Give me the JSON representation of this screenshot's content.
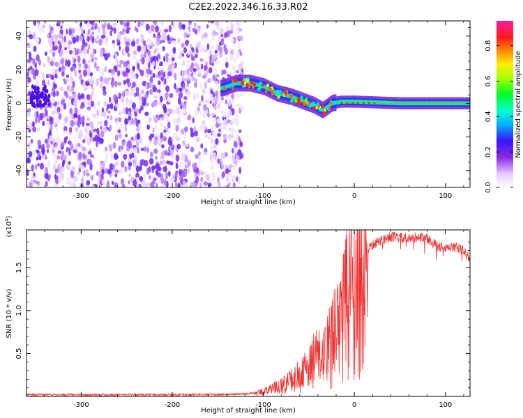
{
  "figure": {
    "title": "C2E2.2022.346.16.33.R02"
  },
  "chart_data": [
    {
      "type": "heatmap",
      "xlabel": "Height of straight line (km)",
      "ylabel": "Frequency (Hz)",
      "xlim": [
        -360,
        127
      ],
      "ylim": [
        -50,
        49
      ],
      "xticks": [
        -300,
        -200,
        -100,
        0,
        100
      ],
      "yticks": [
        -40,
        -20,
        0,
        20,
        40
      ],
      "grid": false,
      "description_of_data": "Noise-like scattered low/medium amplitude blobs across all frequencies for height < -125 km; a coherent ridge from about -145 km (freq ~12 Hz) descending to ~0 Hz near -40 km with a dip to about -4 Hz near -35 km, then a steady narrow band at ~0 Hz from -20 km to 127 km",
      "ridge": {
        "x": [
          -145,
          -130,
          -115,
          -100,
          -85,
          -70,
          -55,
          -45,
          -35,
          -25,
          -15,
          0,
          50,
          100,
          127
        ],
        "y": [
          9,
          12,
          12,
          10,
          6,
          4,
          1,
          -1,
          -4,
          0,
          1,
          1,
          0,
          0,
          0
        ]
      },
      "colorbar": {
        "label": "Normalized spectral amplitude",
        "ticks": [
          0.0,
          0.2,
          0.4,
          0.6,
          0.8
        ],
        "range": [
          0,
          0.94
        ],
        "colormap": "white-purple-blue-cyan-green-yellow-red-magenta"
      }
    },
    {
      "type": "line",
      "xlabel": "Height of straight line (km)",
      "ylabel": "SNR (10 * v/v)",
      "y_multiplier_label": "(x10",
      "y_multiplier_exp": "4",
      "y_multiplier_close": ")",
      "xlim": [
        -360,
        127
      ],
      "ylim": [
        0,
        1.94
      ],
      "xticks": [
        -300,
        -200,
        -100,
        0,
        100
      ],
      "yticks": [
        0.5,
        1.0,
        1.5
      ],
      "color": "#ee3333",
      "series": [
        {
          "x": [
            -360,
            -300,
            -200,
            -150,
            -120,
            -100,
            -90,
            -80,
            -70,
            -60,
            -50,
            -45,
            -40,
            -35,
            -30,
            -25,
            -20,
            -15,
            -10,
            -5,
            0,
            5,
            10,
            15,
            20,
            30,
            40,
            50,
            60,
            70,
            80,
            90,
            100,
            110,
            120,
            127
          ],
          "y": [
            0.02,
            0.02,
            0.02,
            0.02,
            0.03,
            0.06,
            0.1,
            0.15,
            0.2,
            0.28,
            0.38,
            0.5,
            0.55,
            0.5,
            0.6,
            0.75,
            1.0,
            1.2,
            1.3,
            1.45,
            1.55,
            1.62,
            1.68,
            1.72,
            1.76,
            1.82,
            1.86,
            1.85,
            1.83,
            1.86,
            1.84,
            1.76,
            1.72,
            1.74,
            1.7,
            1.6
          ]
        }
      ]
    }
  ],
  "ticklabels": {
    "x": [
      "-300",
      "-200",
      "-100",
      "0",
      "100"
    ],
    "y_top": [
      "40",
      "20",
      "0",
      "-20",
      "-40"
    ],
    "y_bottom": [
      "0.5",
      "1.0",
      "1.5"
    ],
    "cbar": [
      "0.0",
      "0.2",
      "0.4",
      "0.6",
      "0.8"
    ]
  }
}
